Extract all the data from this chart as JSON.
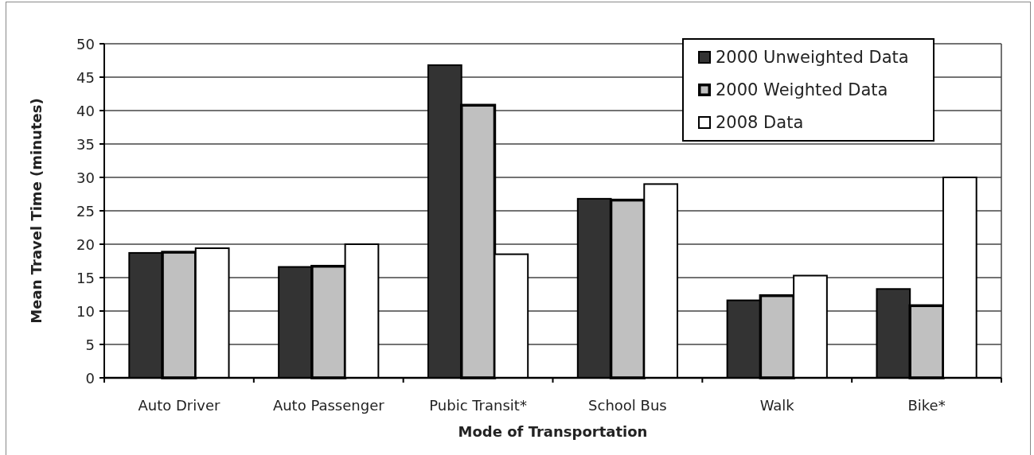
{
  "chart_data": {
    "type": "bar",
    "xlabel": "Mode of Transportation",
    "ylabel": "Mean Travel Time (minutes)",
    "categories": [
      "Auto Driver",
      "Auto Passenger",
      "Pubic Transit*",
      "School Bus",
      "Walk",
      "Bike*"
    ],
    "series": [
      {
        "name": "2000 Unweighted Data",
        "color": "#333333",
        "values": [
          18.7,
          16.6,
          46.8,
          26.8,
          11.6,
          13.3
        ]
      },
      {
        "name": "2000 Weighted Data",
        "color": "#c0c0c0",
        "values": [
          18.8,
          16.7,
          40.8,
          26.6,
          12.3,
          10.8
        ]
      },
      {
        "name": "2008 Data",
        "color": "#ffffff",
        "values": [
          19.4,
          20.0,
          18.5,
          29.0,
          15.3,
          30.0
        ]
      }
    ],
    "ylim": [
      0,
      50
    ],
    "yticks": [
      0,
      5,
      10,
      15,
      20,
      25,
      30,
      35,
      40,
      45,
      50
    ],
    "grid": "y",
    "legend": "top right"
  }
}
